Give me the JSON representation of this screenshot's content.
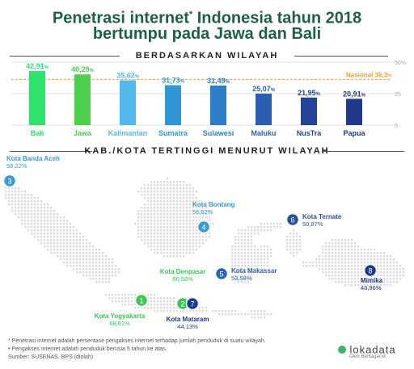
{
  "title": {
    "line1": "Penetrasi internet",
    "mark": "*",
    "line1_tail": "Indonesia tahun 2018",
    "line2": "bertumpu pada Jawa dan Bali"
  },
  "sections": {
    "regions": "BERDASARKAN WILAYAH",
    "cities": "KAB./KOTA TERTINGGI MENURUT WILAYAH"
  },
  "chart_data": {
    "type": "bar",
    "categories": [
      "Bali",
      "Jawa",
      "Kalimantan",
      "Sumatra",
      "Sulawesi",
      "Maluku",
      "NusTra",
      "Papua"
    ],
    "values": [
      42.91,
      40.29,
      35.62,
      31.73,
      31.49,
      25.07,
      21.95,
      20.91
    ],
    "value_labels": [
      "42,91%",
      "40,29%",
      "35,62%",
      "31,73%",
      "31,49%",
      "25,07%",
      "21,95%",
      "20,91%"
    ],
    "colors": [
      "#2ee26b",
      "#4ccf4a",
      "#55b8ea",
      "#2f97d8",
      "#2d7fc8",
      "#2a5fb0",
      "#24449a",
      "#1f3a8a"
    ],
    "ylim": [
      0,
      50
    ],
    "yticks": [
      "0",
      "25",
      "50%"
    ],
    "reference": {
      "value": 36.3,
      "label": "Nasional 36,3",
      "color": "#f2a23a"
    }
  },
  "cities": [
    {
      "num": "1",
      "name": "Kota Yogyakarta",
      "value": "68,61%",
      "color": "#3fc455"
    },
    {
      "num": "2",
      "name": "Kota Denpasar",
      "value": "60,58%",
      "color": "#3fc455"
    },
    {
      "num": "3",
      "name": "Kota Banda Aceh",
      "value": "58,22%",
      "color": "#3a9ad6"
    },
    {
      "num": "4",
      "name": "Kota Bontang",
      "value": "56,62%",
      "color": "#3a9ad6"
    },
    {
      "num": "5",
      "name": "Kota Makassar",
      "value": "53,58%",
      "color": "#2b64b2"
    },
    {
      "num": "6",
      "name": "Kota Ternate",
      "value": "50,87%",
      "color": "#2b4f9e"
    },
    {
      "num": "7",
      "name": "Kota Mataram",
      "value": "44,13%",
      "color": "#1f3a8a"
    },
    {
      "num": "8",
      "name": "Mimika",
      "value": "43,96%",
      "color": "#1f3a8a"
    }
  ],
  "footnotes": {
    "f1": "* Penetrasi internet adalah persentase pengakses internet terhadap jumlah penduduk di suatu wilayah.",
    "f2": "• Pengakses internet adalah penduduk berusia 5 tahun ke atas.",
    "source": "Sumber: SUSENAS, BPS (diolah)"
  },
  "brand": {
    "logo": "lokadata",
    "byline": "Oleh Beritagar.id"
  },
  "colors": {
    "title": "#1f5f46",
    "map_dot": "#dcdcdc"
  }
}
